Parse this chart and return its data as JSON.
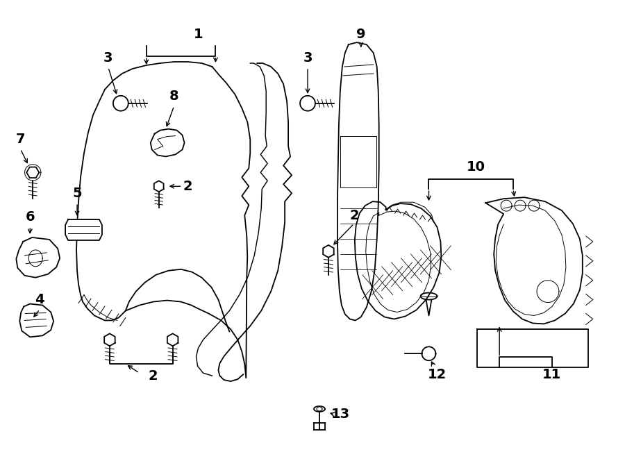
{
  "figsize": [
    9.0,
    6.61
  ],
  "dpi": 100,
  "bg": "#ffffff",
  "lc": "#000000",
  "lw": 1.3,
  "lt": 0.7
}
